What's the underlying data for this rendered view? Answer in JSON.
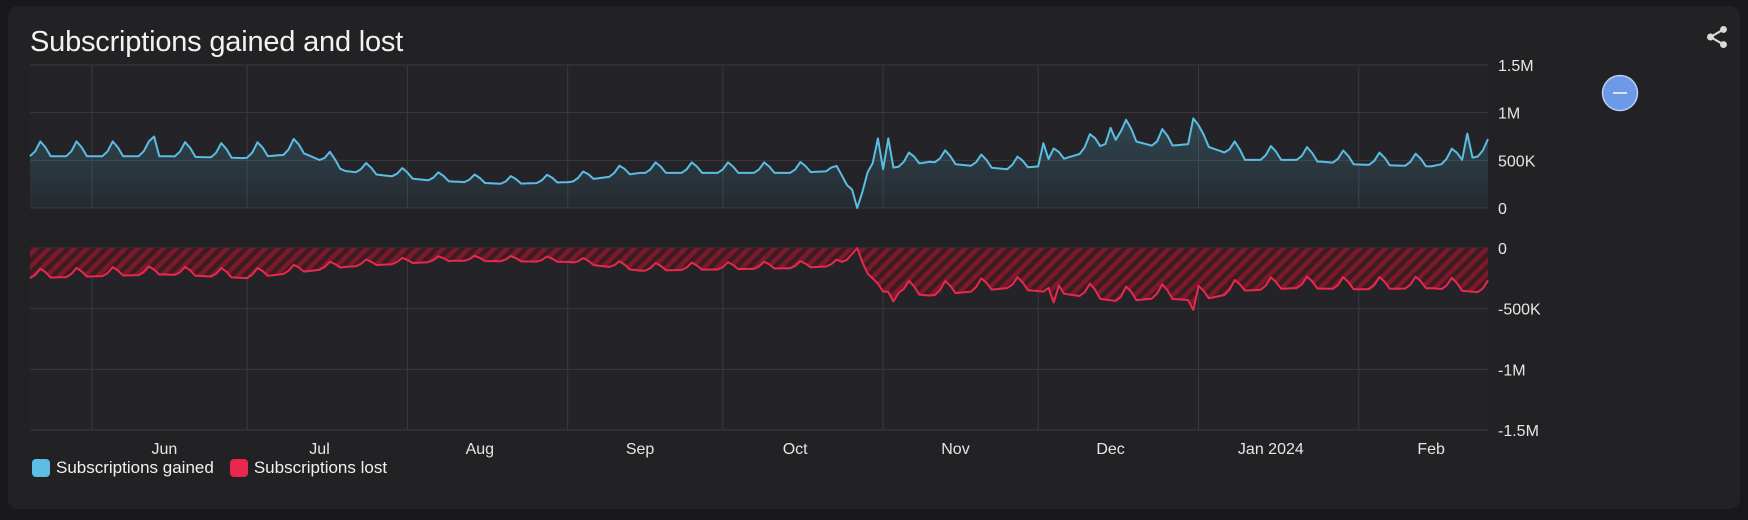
{
  "title": "Subscriptions gained and lost",
  "colors": {
    "gained": "#5bbde3",
    "lost": "#e8284f",
    "background": "#222225",
    "grid": "#3a3a3e",
    "zoom_button": "#6d9ae8"
  },
  "icons": {
    "share": "share-icon",
    "zoom": "zoom-out-icon"
  },
  "legend": [
    {
      "label": "Subscriptions gained",
      "color": "#5bbde3"
    },
    {
      "label": "Subscriptions lost",
      "color": "#e8284f"
    }
  ],
  "chart_data": {
    "type": "area",
    "x_ticks": [
      "Jun",
      "Jul",
      "Aug",
      "Sep",
      "Oct",
      "Nov",
      "Dec",
      "Jan 2024",
      "Feb"
    ],
    "panels": [
      {
        "series": "Subscriptions gained",
        "y_ticks": [
          "1.5M",
          "1M",
          "500K",
          "0"
        ],
        "ylim": [
          0,
          1500000
        ]
      },
      {
        "series": "Subscriptions lost",
        "y_ticks": [
          "0",
          "-500K",
          "-1M",
          "-1.5M"
        ],
        "ylim": [
          -1500000,
          0
        ]
      }
    ],
    "series": [
      {
        "name": "Subscriptions gained",
        "knots": [
          [
            "2023-05-20",
            560000
          ],
          [
            "2023-06-15",
            560000
          ],
          [
            "2023-06-30",
            540000
          ],
          [
            "2023-07-12",
            590000
          ],
          [
            "2023-07-20",
            400000
          ],
          [
            "2023-08-05",
            300000
          ],
          [
            "2023-08-20",
            260000
          ],
          [
            "2023-09-01",
            280000
          ],
          [
            "2023-09-15",
            380000
          ],
          [
            "2023-10-01",
            380000
          ],
          [
            "2023-10-15",
            380000
          ],
          [
            "2023-10-22",
            400000
          ],
          [
            "2023-10-26",
            200000
          ],
          [
            "2023-10-27",
            0
          ],
          [
            "2023-10-29",
            350000
          ],
          [
            "2023-11-01",
            420000
          ],
          [
            "2023-11-10",
            500000
          ],
          [
            "2023-11-25",
            420000
          ],
          [
            "2023-12-01",
            450000
          ],
          [
            "2023-12-10",
            600000
          ],
          [
            "2023-12-17",
            760000
          ],
          [
            "2023-12-24",
            660000
          ],
          [
            "2024-01-01",
            700000
          ],
          [
            "2024-01-10",
            520000
          ],
          [
            "2024-01-20",
            520000
          ],
          [
            "2024-02-01",
            470000
          ],
          [
            "2024-02-15",
            450000
          ],
          [
            "2024-02-26",
            580000
          ]
        ],
        "weekly_peaks": [
          [
            "2023-06-13",
            750000
          ],
          [
            "2023-10-31",
            730000
          ],
          [
            "2023-11-02",
            730000
          ],
          [
            "2023-12-02",
            680000
          ],
          [
            "2023-12-15",
            840000
          ],
          [
            "2023-12-31",
            940000
          ],
          [
            "2024-02-22",
            780000
          ]
        ]
      },
      {
        "name": "Subscriptions lost",
        "knots": [
          [
            "2023-05-20",
            -240000
          ],
          [
            "2023-06-15",
            -210000
          ],
          [
            "2023-07-01",
            -240000
          ],
          [
            "2023-07-20",
            -150000
          ],
          [
            "2023-08-10",
            -100000
          ],
          [
            "2023-09-01",
            -110000
          ],
          [
            "2023-09-15",
            -180000
          ],
          [
            "2023-10-01",
            -170000
          ],
          [
            "2023-10-15",
            -160000
          ],
          [
            "2023-10-24",
            -140000
          ],
          [
            "2023-10-27",
            0
          ],
          [
            "2023-10-30",
            -340000
          ],
          [
            "2023-11-10",
            -380000
          ],
          [
            "2023-11-25",
            -320000
          ],
          [
            "2023-12-05",
            -360000
          ],
          [
            "2023-12-17",
            -430000
          ],
          [
            "2023-12-24",
            -400000
          ],
          [
            "2024-01-01",
            -420000
          ],
          [
            "2024-01-10",
            -340000
          ],
          [
            "2024-01-20",
            -320000
          ],
          [
            "2024-02-01",
            -330000
          ],
          [
            "2024-02-15",
            -320000
          ],
          [
            "2024-02-26",
            -360000
          ]
        ],
        "weekly_dips": [
          [
            "2023-11-03",
            -440000
          ],
          [
            "2023-12-04",
            -450000
          ],
          [
            "2023-12-31",
            -510000
          ]
        ]
      }
    ]
  }
}
